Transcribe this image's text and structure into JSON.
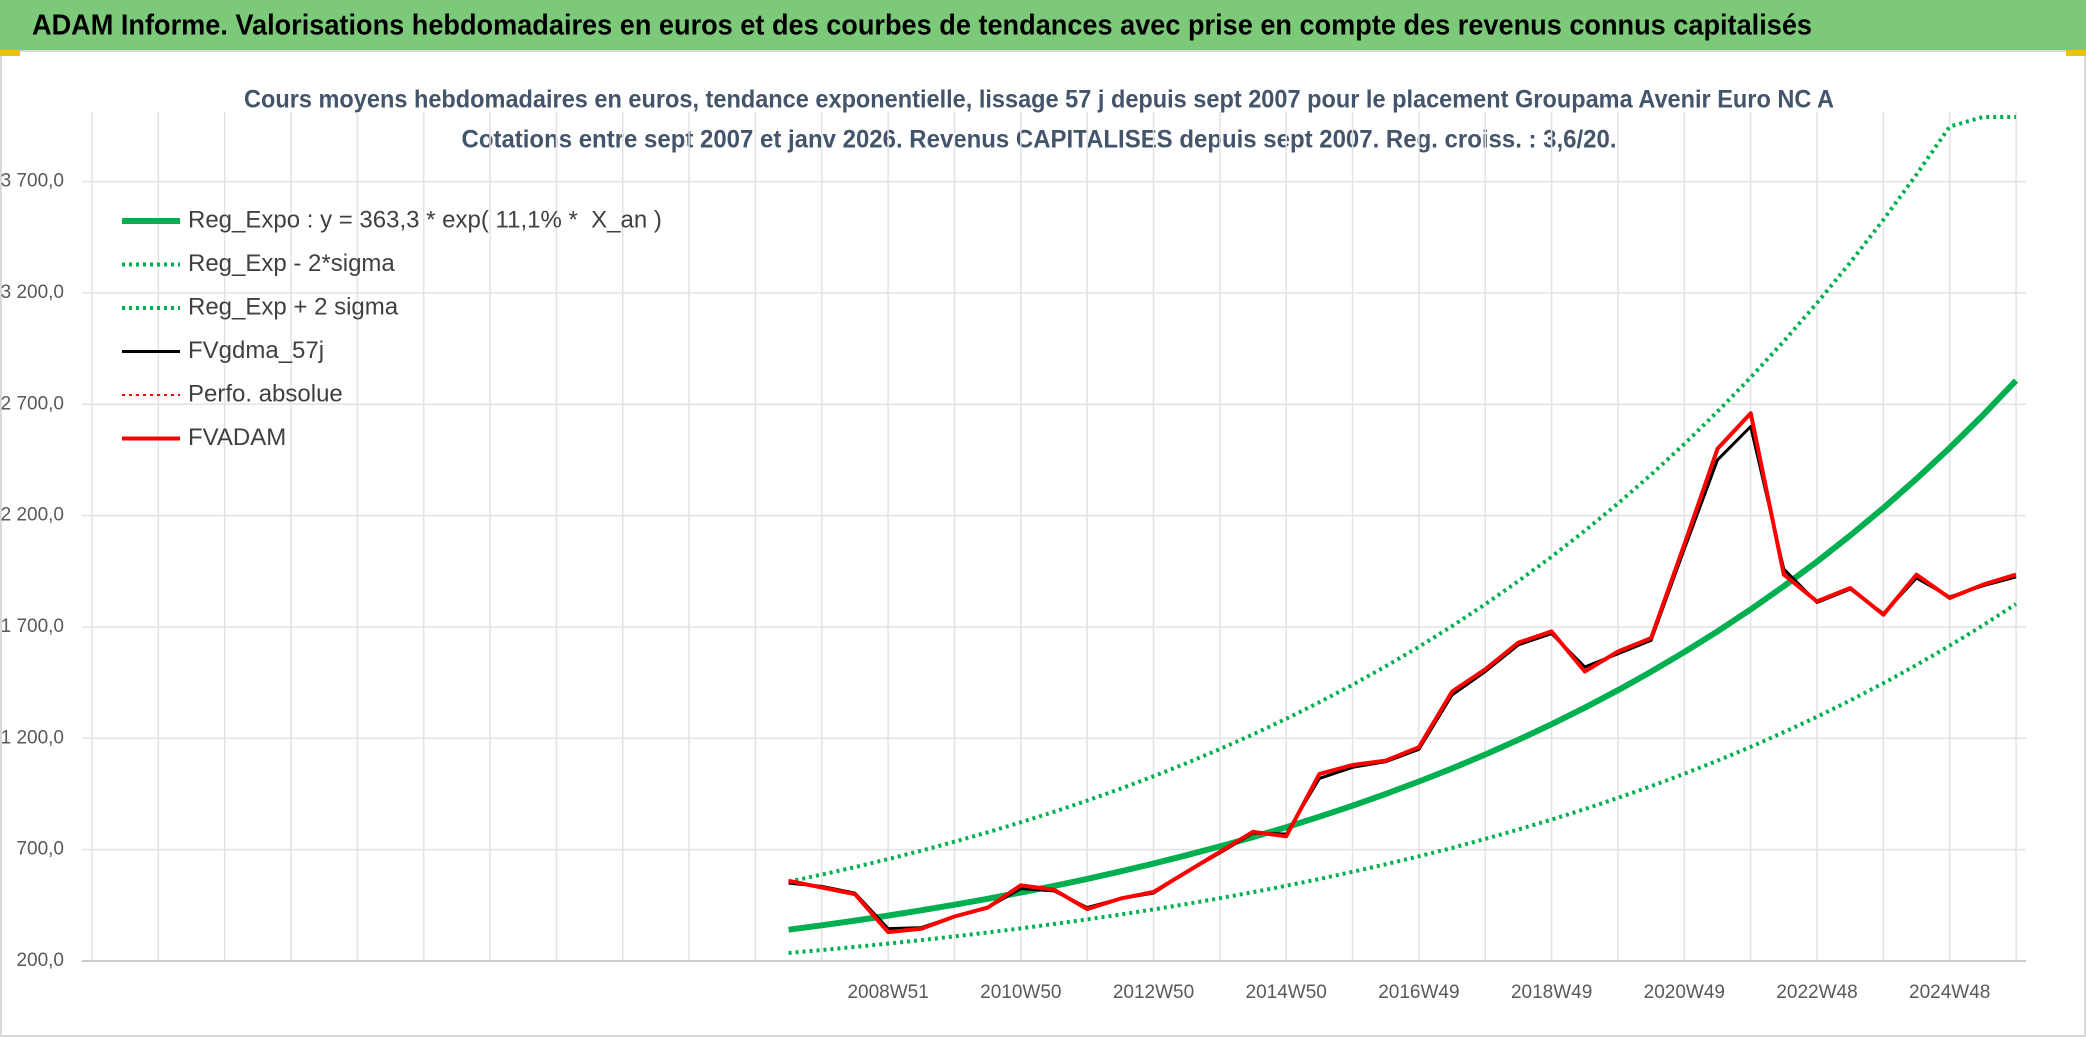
{
  "header": "ADAM Informe. Valorisations hebdomadaires en euros et des courbes de tendances avec prise en compte des revenus connus capitalisés",
  "chart_data": {
    "type": "line",
    "title": "Cours moyens hebdomadaires en euros, tendance exponentielle, lissage 57 j depuis sept 2007 pour le placement Groupama Avenir Euro NC A",
    "subtitle": "Cotations entre sept 2007 et janv 2026. Revenus CAPITALISES depuis sept 2007. Reg. croiss. : 3,6/20.",
    "categories": [
      null,
      null,
      null,
      null,
      null,
      null,
      null,
      null,
      null,
      null,
      null,
      null,
      null,
      null,
      null,
      null,
      null,
      null,
      null,
      null,
      null,
      null,
      null,
      null,
      "2008W51",
      null,
      null,
      null,
      "2010W50",
      null,
      null,
      null,
      "2012W50",
      null,
      null,
      null,
      "2014W50",
      null,
      null,
      null,
      "2016W49",
      null,
      null,
      null,
      "2018W49",
      null,
      null,
      null,
      "2020W49",
      null,
      null,
      null,
      "2022W48",
      null,
      null,
      null,
      "2024W48",
      null,
      null
    ],
    "ylim": [
      200,
      3990
    ],
    "yticks": [
      {
        "value": 200,
        "label": "200,0"
      },
      {
        "value": 700,
        "label": "700,0"
      },
      {
        "value": 1200,
        "label": "1 200,0"
      },
      {
        "value": 1700,
        "label": "1 700,0"
      },
      {
        "value": 2200,
        "label": "2 200,0"
      },
      {
        "value": 2700,
        "label": "2 700,0"
      },
      {
        "value": 3200,
        "label": "3 200,0"
      },
      {
        "value": 3700,
        "label": "3 700,0"
      }
    ],
    "grid": true,
    "legend": "upper left",
    "series": [
      {
        "name": "Reg_Expo : y = 363,3 * exp( 11,1% *  X_an )",
        "color": "#00b050",
        "dash": "solid",
        "width": 6,
        "values": [
          null,
          null,
          null,
          null,
          null,
          null,
          null,
          null,
          null,
          null,
          null,
          null,
          null,
          null,
          null,
          null,
          null,
          null,
          null,
          null,
          null,
          340.5,
          360.5,
          381.6,
          404.0,
          427.7,
          452.8,
          479.4,
          507.5,
          537.3,
          568.8,
          602.2,
          637.5,
          674.9,
          714.5,
          756.4,
          800.8,
          847.8,
          897.5,
          950.2,
          1005.9,
          1064.9,
          1127.4,
          1193.5,
          1263.5,
          1337.6,
          1416.1,
          1499.2,
          1587.1,
          1680.2,
          1778.8,
          1883.1,
          1993.6,
          2110.5,
          2234.3,
          2365.4,
          2504.1,
          2651.0,
          2806.5
        ]
      },
      {
        "name": "Reg_Exp - 2*sigma",
        "color": "#00b050",
        "dash": "dotted",
        "width": 4,
        "values": [
          null,
          null,
          null,
          null,
          null,
          null,
          null,
          null,
          null,
          null,
          null,
          null,
          null,
          null,
          null,
          null,
          null,
          null,
          null,
          null,
          null,
          235.7,
          249.0,
          263.1,
          278.0,
          293.7,
          310.3,
          327.8,
          346.4,
          366.0,
          386.7,
          408.5,
          431.6,
          456.0,
          481.8,
          509.1,
          537.8,
          568.2,
          600.4,
          634.3,
          670.2,
          708.1,
          748.1,
          790.4,
          835.1,
          882.3,
          932.2,
          984.9,
          1040.6,
          1099.4,
          1161.6,
          1227.3,
          1296.7,
          1370.0,
          1447.5,
          1529.3,
          1615.8,
          1707.2,
          1803.7
        ]
      },
      {
        "name": "Reg_Exp + 2 sigma",
        "color": "#00b050",
        "dash": "dotted",
        "width": 4,
        "values": [
          null,
          null,
          null,
          null,
          null,
          null,
          null,
          null,
          null,
          null,
          null,
          null,
          null,
          null,
          null,
          null,
          null,
          null,
          null,
          null,
          null,
          555.9,
          587.9,
          621.8,
          657.6,
          695.5,
          735.6,
          777.9,
          822.7,
          870.1,
          920.3,
          973.3,
          1029.4,
          1088.7,
          1151.4,
          1217.7,
          1287.8,
          1362.0,
          1440.4,
          1523.4,
          1611.1,
          1703.9,
          1802.0,
          1905.8,
          2015.6,
          2131.7,
          2254.5,
          2384.3,
          2521.6,
          2666.9,
          2820.5,
          2982.9,
          3154.7,
          3336.4,
          3528.6,
          3731.8,
          3946.7,
          3990,
          3990
        ]
      },
      {
        "name": "FVgdma_57j",
        "color": "#000000",
        "dash": "solid",
        "width": 3,
        "values": [
          null,
          null,
          null,
          null,
          null,
          null,
          null,
          null,
          null,
          null,
          null,
          null,
          null,
          null,
          null,
          null,
          null,
          null,
          null,
          null,
          null,
          550,
          535,
          505,
          345,
          350,
          400,
          440,
          525,
          515,
          440,
          480,
          505,
          600,
          685,
          775,
          770,
          1020,
          1070,
          1095,
          1150,
          1395,
          1500,
          1620,
          1670,
          1520,
          1580,
          1640,
          2050,
          2450,
          2600,
          1960,
          1810,
          1870,
          1760,
          1920,
          1835,
          1885,
          1925
        ]
      },
      {
        "name": "Perfo. absolue",
        "color": "#ff0000",
        "dash": "dotted",
        "width": 2,
        "values": [
          null,
          null,
          null,
          null,
          null,
          null,
          null,
          null,
          null,
          null,
          null,
          null,
          null,
          null,
          null,
          null,
          null,
          null,
          null,
          null,
          null,
          560,
          530,
          500,
          330,
          345,
          400,
          440,
          540,
          520,
          433,
          480,
          510,
          600,
          690,
          780,
          760,
          1040,
          1080,
          1100,
          1160,
          1410,
          1510,
          1630,
          1680,
          1500,
          1590,
          1650,
          2070,
          2500,
          2660,
          1935,
          1815,
          1875,
          1755,
          1935,
          1830,
          1890,
          1935
        ]
      },
      {
        "name": "FVADAM",
        "color": "#ff0000",
        "dash": "solid",
        "width": 4,
        "values": [
          null,
          null,
          null,
          null,
          null,
          null,
          null,
          null,
          null,
          null,
          null,
          null,
          null,
          null,
          null,
          null,
          null,
          null,
          null,
          null,
          null,
          560,
          530,
          500,
          330,
          345,
          400,
          440,
          540,
          520,
          433,
          480,
          510,
          600,
          690,
          780,
          760,
          1040,
          1080,
          1100,
          1160,
          1410,
          1510,
          1630,
          1680,
          1500,
          1590,
          1650,
          2070,
          2500,
          2660,
          1935,
          1815,
          1875,
          1755,
          1935,
          1830,
          1890,
          1935
        ]
      }
    ]
  }
}
